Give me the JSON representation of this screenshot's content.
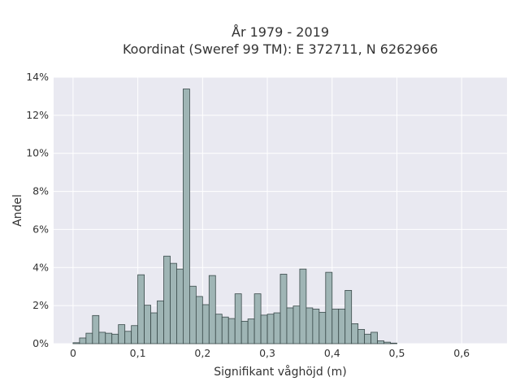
{
  "chart_data": {
    "type": "bar",
    "title_line1": "År 1979 - 2019",
    "title_line2": "Koordinat (Sweref 99 TM): E 372711, N 6262966",
    "xlabel": "Signifikant våghöjd (m)",
    "ylabel": "Andel",
    "bin_width": 0.01,
    "x_start": 0.0,
    "xlim": [
      -0.03,
      0.67
    ],
    "ylim": [
      0,
      14
    ],
    "grid": true,
    "legend": "none",
    "x_ticks": [
      {
        "value": 0,
        "label": "0"
      },
      {
        "value": 0.1,
        "label": "0,1"
      },
      {
        "value": 0.2,
        "label": "0,2"
      },
      {
        "value": 0.3,
        "label": "0,3"
      },
      {
        "value": 0.4,
        "label": "0,4"
      },
      {
        "value": 0.5,
        "label": "0,5"
      },
      {
        "value": 0.6,
        "label": "0,6"
      }
    ],
    "y_ticks": [
      {
        "value": 0,
        "label": "0%"
      },
      {
        "value": 2,
        "label": "2%"
      },
      {
        "value": 4,
        "label": "4%"
      },
      {
        "value": 6,
        "label": "6%"
      },
      {
        "value": 8,
        "label": "8%"
      },
      {
        "value": 10,
        "label": "10%"
      },
      {
        "value": 12,
        "label": "12%"
      },
      {
        "value": 14,
        "label": "14%"
      }
    ],
    "values": [
      0.05,
      0.3,
      0.55,
      1.48,
      0.6,
      0.55,
      0.5,
      1.0,
      0.65,
      0.95,
      3.62,
      2.02,
      1.62,
      2.25,
      4.6,
      4.22,
      3.92,
      13.38,
      3.02,
      2.48,
      2.05,
      3.58,
      1.55,
      1.4,
      1.32,
      2.62,
      1.18,
      1.3,
      2.62,
      1.5,
      1.55,
      1.62,
      3.65,
      1.88,
      1.98,
      3.92,
      1.88,
      1.82,
      1.65,
      3.75,
      1.82,
      1.82,
      2.8,
      1.05,
      0.75,
      0.5,
      0.6,
      0.15,
      0.08,
      0.03
    ],
    "colors": {
      "bar_fill": "#9fb5b5",
      "bar_edge": "#3a4a4a",
      "plot_bg": "#e9e9f1",
      "grid": "#ffffff"
    }
  }
}
